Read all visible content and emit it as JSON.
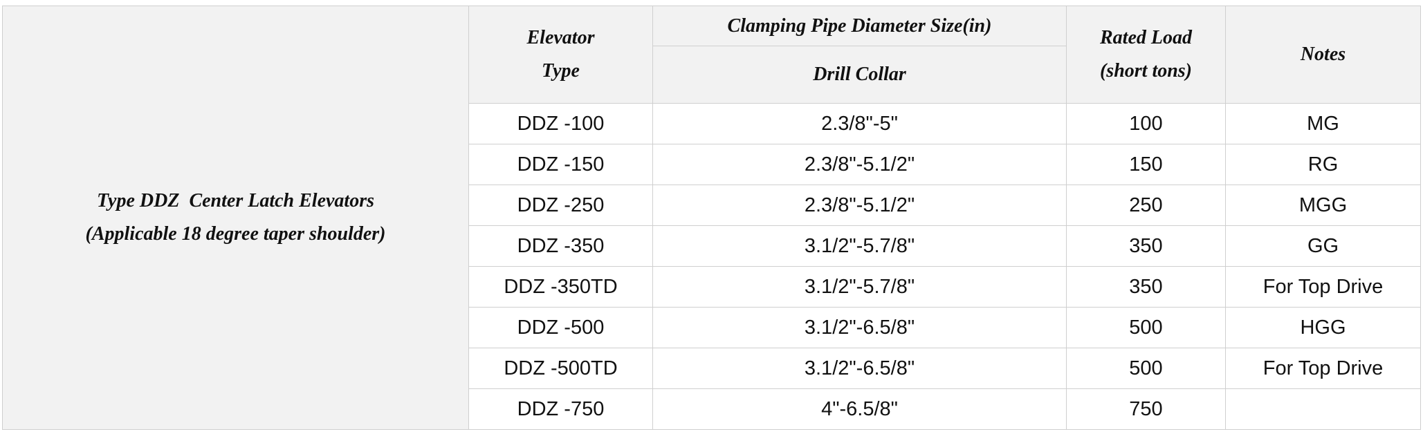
{
  "table": {
    "caption": [
      "Type DDZ  Center Latch Elevators",
      "(Applicable 18 degree taper shoulder)"
    ],
    "header": {
      "elevator_type": [
        "Elevator",
        "Type"
      ],
      "clamping": "Clamping Pipe Diameter Size(in)",
      "drill_collar": "Drill Collar",
      "rated_load": [
        "Rated Load",
        "(short tons)"
      ],
      "notes": "Notes"
    },
    "rows": [
      [
        "DDZ -100",
        "2.3/8\"-5\"",
        100,
        "MG"
      ],
      [
        "DDZ -150",
        "2.3/8\"-5.1/2\"",
        150,
        "RG"
      ],
      [
        "DDZ -250",
        "2.3/8\"-5.1/2\"",
        250,
        "MGG"
      ],
      [
        "DDZ -350",
        "3.1/2\"-5.7/8\"",
        350,
        "GG"
      ],
      [
        "DDZ -350TD",
        "3.1/2\"-5.7/8\"",
        350,
        "For Top Drive"
      ],
      [
        "DDZ -500",
        "3.1/2\"-6.5/8\"",
        500,
        "HGG"
      ],
      [
        "DDZ -500TD",
        "3.1/2\"-6.5/8\"",
        500,
        "For Top Drive"
      ],
      [
        "DDZ -750",
        "4\"-6.5/8\"",
        750
      ]
    ]
  }
}
